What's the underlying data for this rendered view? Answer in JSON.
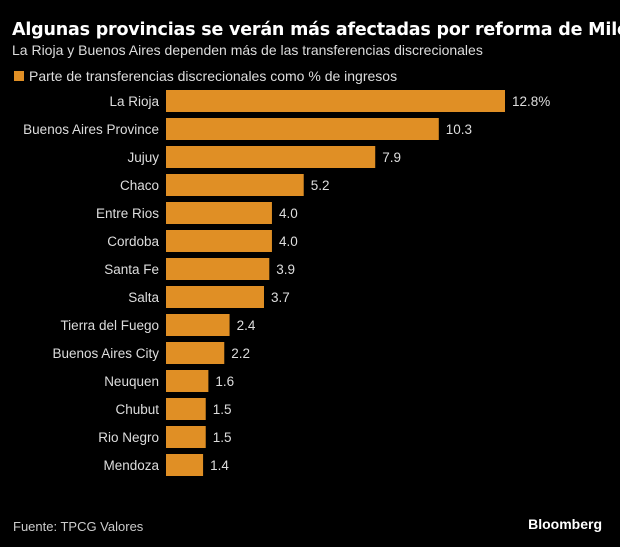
{
  "chart_data": {
    "type": "bar",
    "orientation": "horizontal",
    "title": "Algunas provincias se verán más afectadas por reforma de Milei",
    "subtitle": "La Rioja y Buenos Aires dependen más de las transferencias discrecionales",
    "legend": "Parte de transferencias discrecionales como % de ingresos",
    "legend_placement": "top-left",
    "categories": [
      "La Rioja",
      "Buenos Aires Province",
      "Jujuy",
      "Chaco",
      "Entre Rios",
      "Cordoba",
      "Santa Fe",
      "Salta",
      "Tierra del Fuego",
      "Buenos Aires City",
      "Neuquen",
      "Chubut",
      "Rio Negro",
      "Mendoza"
    ],
    "values": [
      12.8,
      10.3,
      7.9,
      5.2,
      4.0,
      4.0,
      3.9,
      3.7,
      2.4,
      2.2,
      1.6,
      1.5,
      1.5,
      1.4
    ],
    "value_labels": [
      "12.8%",
      "10.3",
      "7.9",
      "5.2",
      "4.0",
      "4.0",
      "3.9",
      "3.7",
      "2.4",
      "2.2",
      "1.6",
      "1.5",
      "1.5",
      "1.4"
    ],
    "xlim": [
      0,
      12.8
    ],
    "grid": false,
    "bar_color": "#e08f25",
    "background": "#000000"
  },
  "footer": {
    "source": "Fuente: TPCG Valores",
    "brand": "Bloomberg"
  }
}
